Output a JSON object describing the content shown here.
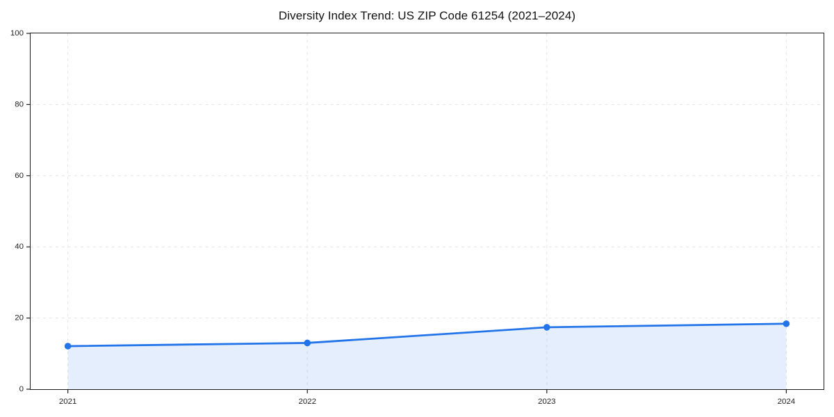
{
  "chart_data": {
    "type": "area",
    "title": "Diversity Index Trend: US ZIP Code 61254 (2021–2024)",
    "categories": [
      "2021",
      "2022",
      "2023",
      "2024"
    ],
    "series": [
      {
        "name": "Diversity Index",
        "values": [
          12.1,
          13.0,
          17.4,
          18.4
        ]
      }
    ],
    "xlabel": "",
    "ylabel": "",
    "ylim": [
      0,
      100
    ],
    "yticks": [
      0,
      20,
      40,
      60,
      80,
      100
    ],
    "grid": true,
    "grid_style": "dashed",
    "legend_position": "none",
    "line_color": "#2374e8",
    "marker_color": "#2374e8",
    "fill_color": "#2374e8",
    "fill_opacity": 0.12,
    "grid_color": "#e4e4e4",
    "spine_color": "#1a1a1a",
    "tick_label_color": "#222222",
    "background_color": "#ffffff"
  }
}
